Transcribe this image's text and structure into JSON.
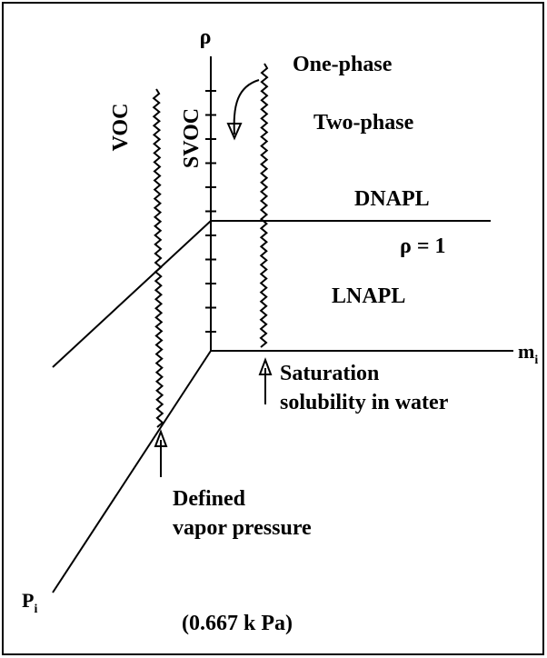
{
  "axes": {
    "rho": "ρ",
    "m": "m",
    "m_sub": "i",
    "p": "P",
    "p_sub": "i"
  },
  "labels": {
    "voc": "VOC",
    "svoc": "SVOC",
    "one_phase": "One-phase",
    "two_phase": "Two-phase",
    "dnapl": "DNAPL",
    "rho_one": "ρ = 1",
    "lnapl": "LNAPL",
    "saturation": [
      "Saturation",
      "solubility in water"
    ],
    "defined": [
      "Defined",
      "vapor pressure"
    ],
    "pressure_value": "(0.667 k Pa)"
  }
}
